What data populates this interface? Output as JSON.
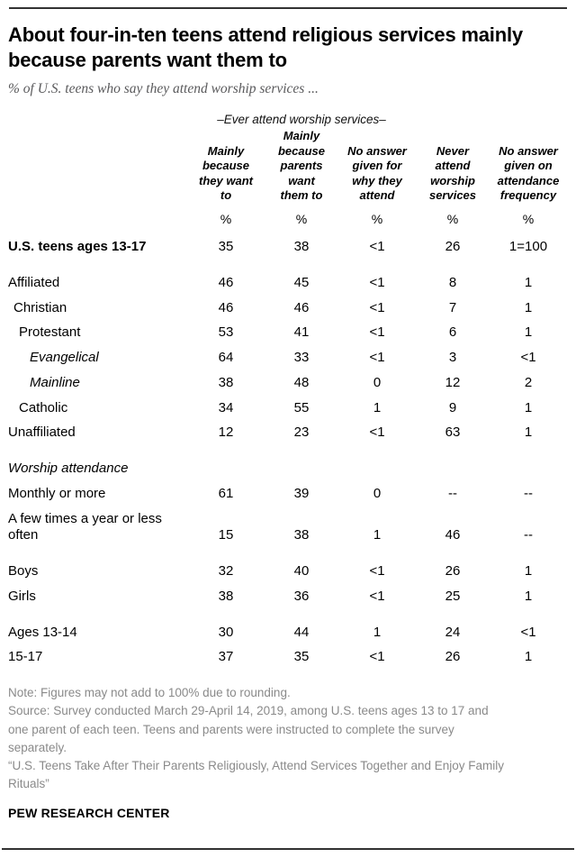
{
  "chart_data": {
    "type": "table",
    "title": "About four-in-ten teens attend religious services mainly because parents want them to",
    "subtitle": "% of U.S. teens who say they attend worship services ...",
    "group_header": "–Ever attend worship services–",
    "columns": [
      "Mainly\nbecause\nthey want\nto",
      "Mainly\nbecause\nparents\nwant\nthem to",
      "No answer\ngiven for\nwhy they\nattend",
      "Never\nattend\nworship\nservices",
      "No answer\ngiven on\nattendance\nfrequency"
    ],
    "units": [
      "%",
      "%",
      "%",
      "%",
      "%"
    ],
    "rows": [
      {
        "label": "U.S. teens ages 13-17",
        "values": [
          "35",
          "38",
          "<1",
          "26",
          "1=100"
        ]
      },
      {
        "label": "Affiliated",
        "values": [
          "46",
          "45",
          "<1",
          "8",
          "1"
        ]
      },
      {
        "label": "Christian",
        "values": [
          "46",
          "46",
          "<1",
          "7",
          "1"
        ]
      },
      {
        "label": "Protestant",
        "values": [
          "53",
          "41",
          "<1",
          "6",
          "1"
        ]
      },
      {
        "label": "Evangelical",
        "values": [
          "64",
          "33",
          "<1",
          "3",
          "<1"
        ]
      },
      {
        "label": "Mainline",
        "values": [
          "38",
          "48",
          "0",
          "12",
          "2"
        ]
      },
      {
        "label": "Catholic",
        "values": [
          "34",
          "55",
          "1",
          "9",
          "1"
        ]
      },
      {
        "label": "Unaffiliated",
        "values": [
          "12",
          "23",
          "<1",
          "63",
          "1"
        ]
      },
      {
        "label": "Worship attendance",
        "values": [
          "",
          "",
          "",
          "",
          ""
        ]
      },
      {
        "label": "Monthly or more",
        "values": [
          "61",
          "39",
          "0",
          "--",
          "--"
        ]
      },
      {
        "label": "A few times a year or less often",
        "values": [
          "15",
          "38",
          "1",
          "46",
          "--"
        ]
      },
      {
        "label": "Boys",
        "values": [
          "32",
          "40",
          "<1",
          "26",
          "1"
        ]
      },
      {
        "label": "Girls",
        "values": [
          "38",
          "36",
          "<1",
          "25",
          "1"
        ]
      },
      {
        "label": "Ages 13-14",
        "values": [
          "30",
          "44",
          "1",
          "24",
          "<1"
        ]
      },
      {
        "label": "15-17",
        "values": [
          "37",
          "35",
          "<1",
          "26",
          "1"
        ]
      }
    ]
  },
  "footer": {
    "note": "Note: Figures may not add to 100% due to rounding.",
    "source": "Source: Survey conducted March 29-April 14, 2019, among U.S. teens ages 13 to 17 and\none parent of each teen. Teens and parents were instructed to complete the survey\nseparately.",
    "report": "“U.S. Teens Take After Their Parents Religiously, Attend Services Together and Enjoy Family\nRituals”",
    "brand": "PEW RESEARCH CENTER"
  }
}
